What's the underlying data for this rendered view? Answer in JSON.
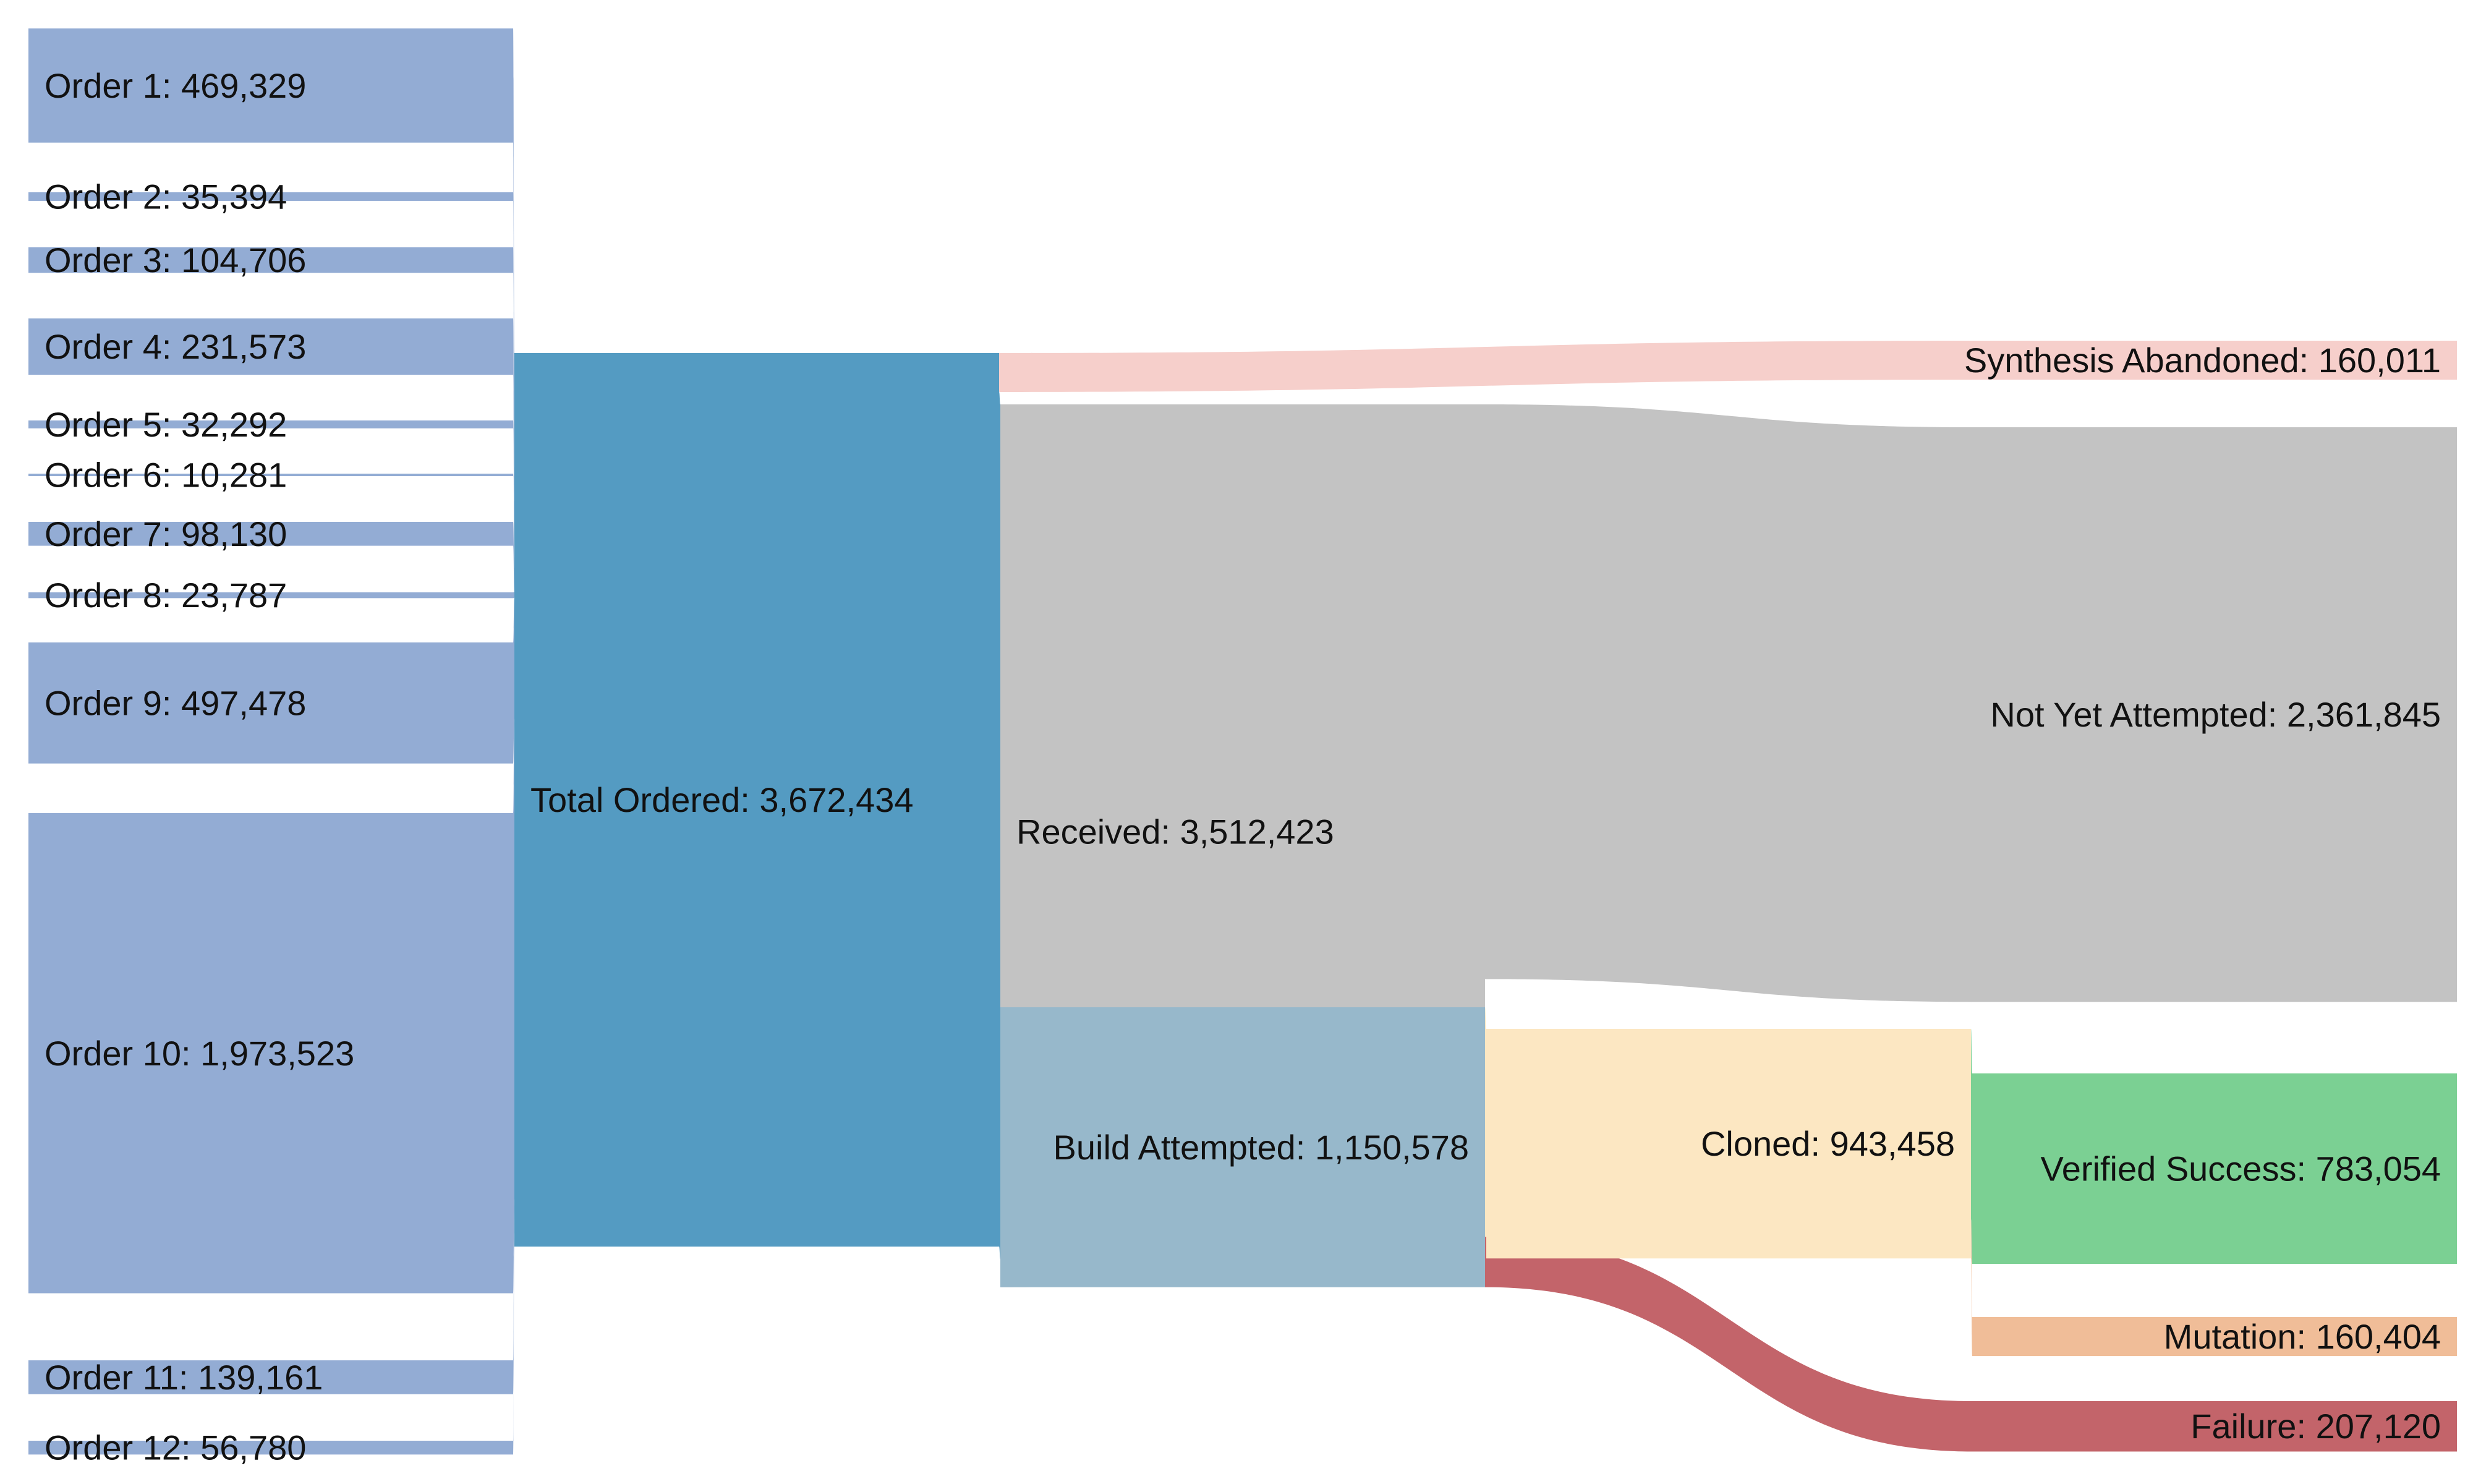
{
  "nodes": [
    {
      "id": "o1",
      "label": "Order 1: 469,329",
      "value": 469329,
      "color": "#93acd4"
    },
    {
      "id": "o2",
      "label": "Order 2: 35,394",
      "value": 35394,
      "color": "#93acd4"
    },
    {
      "id": "o3",
      "label": "Order 3: 104,706",
      "value": 104706,
      "color": "#93acd4"
    },
    {
      "id": "o4",
      "label": "Order 4: 231,573",
      "value": 231573,
      "color": "#93acd4"
    },
    {
      "id": "o5",
      "label": "Order 5: 32,292",
      "value": 32292,
      "color": "#93acd4"
    },
    {
      "id": "o6",
      "label": "Order 6: 10,281",
      "value": 10281,
      "color": "#93acd4"
    },
    {
      "id": "o7",
      "label": "Order 7: 98,130",
      "value": 98130,
      "color": "#93acd4"
    },
    {
      "id": "o8",
      "label": "Order 8: 23,787",
      "value": 23787,
      "color": "#93acd4"
    },
    {
      "id": "o9",
      "label": "Order 9: 497,478",
      "value": 497478,
      "color": "#93acd4"
    },
    {
      "id": "o10",
      "label": "Order 10: 1,973,523",
      "value": 1973523,
      "color": "#93acd4"
    },
    {
      "id": "o11",
      "label": "Order 11: 139,161",
      "value": 139161,
      "color": "#93acd4"
    },
    {
      "id": "o12",
      "label": "Order 12: 56,780",
      "value": 56780,
      "color": "#93acd4"
    },
    {
      "id": "total",
      "label": "Total Ordered: 3,672,434",
      "value": 3672434,
      "color": "#549bc2"
    },
    {
      "id": "abandoned",
      "label": "Synthesis Abandoned: 160,011",
      "value": 160011,
      "color": "#f6cfcb"
    },
    {
      "id": "received",
      "label": "Received: 3,512,423",
      "value": 3512423,
      "color": "#c3c3c3"
    },
    {
      "id": "notyet",
      "label": "Not Yet Attempted: 2,361,845",
      "value": 2361845,
      "color": "#c3c3c3"
    },
    {
      "id": "build",
      "label": "Build Attempted: 1,150,578",
      "value": 1150578,
      "color": "#97b8cb"
    },
    {
      "id": "cloned",
      "label": "Cloned: 943,458",
      "value": 943458,
      "color": "#fce7c2"
    },
    {
      "id": "success",
      "label": "Verified Success: 783,054",
      "value": 783054,
      "color": "#7bd093"
    },
    {
      "id": "mutation",
      "label": "Mutation: 160,404",
      "value": 160404,
      "color": "#f0bd98"
    },
    {
      "id": "failure",
      "label": "Failure: 207,120",
      "value": 207120,
      "color": "#c3646a"
    }
  ],
  "links": [
    {
      "source": "o1",
      "target": "total",
      "value": 469329,
      "color": "#93acd4"
    },
    {
      "source": "o2",
      "target": "total",
      "value": 35394,
      "color": "#93acd4"
    },
    {
      "source": "o3",
      "target": "total",
      "value": 104706,
      "color": "#93acd4"
    },
    {
      "source": "o4",
      "target": "total",
      "value": 231573,
      "color": "#93acd4"
    },
    {
      "source": "o5",
      "target": "total",
      "value": 32292,
      "color": "#93acd4"
    },
    {
      "source": "o6",
      "target": "total",
      "value": 10281,
      "color": "#93acd4"
    },
    {
      "source": "o7",
      "target": "total",
      "value": 98130,
      "color": "#93acd4"
    },
    {
      "source": "o8",
      "target": "total",
      "value": 23787,
      "color": "#93acd4"
    },
    {
      "source": "o9",
      "target": "total",
      "value": 497478,
      "color": "#93acd4"
    },
    {
      "source": "o10",
      "target": "total",
      "value": 1973523,
      "color": "#93acd4"
    },
    {
      "source": "o11",
      "target": "total",
      "value": 139161,
      "color": "#93acd4"
    },
    {
      "source": "o12",
      "target": "total",
      "value": 56780,
      "color": "#93acd4"
    },
    {
      "source": "total",
      "target": "abandoned",
      "value": 160011,
      "color": "#f6cfcb"
    },
    {
      "source": "total",
      "target": "received",
      "value": 3512423,
      "color": "#549bc2"
    },
    {
      "source": "received",
      "target": "notyet",
      "value": 2361845,
      "color": "#c3c3c3"
    },
    {
      "source": "received",
      "target": "build",
      "value": 1150578,
      "color": "#97b8cb"
    },
    {
      "source": "build",
      "target": "cloned",
      "value": 943458,
      "color": "#fce7c2"
    },
    {
      "source": "build",
      "target": "failure",
      "value": 207120,
      "color": "#c3646a"
    },
    {
      "source": "cloned",
      "target": "success",
      "value": 783054,
      "color": "#7bd093"
    },
    {
      "source": "cloned",
      "target": "mutation",
      "value": 160404,
      "color": "#f0bd98"
    }
  ]
}
